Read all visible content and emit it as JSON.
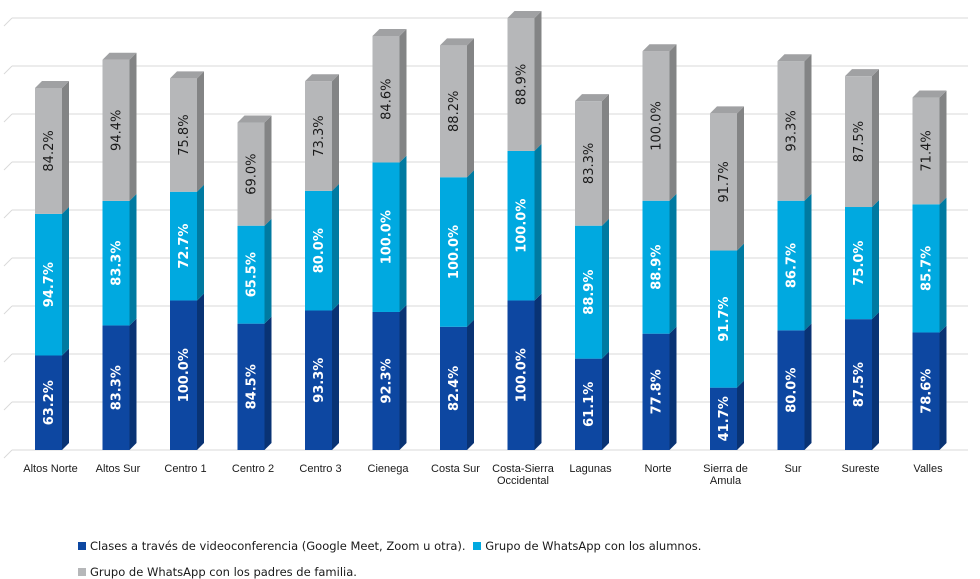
{
  "chart_data": {
    "type": "bar",
    "stacked": true,
    "value_mode": "stacked 3D bars, each segment labeled with a percentage",
    "categories": [
      "Altos Norte",
      "Altos Sur",
      "Centro 1",
      "Centro 2",
      "Centro 3",
      "Cienega",
      "Costa Sur",
      "Costa-Sierra Occidental",
      "Lagunas",
      "Norte",
      "Sierra de Amula",
      "Sur",
      "Sureste",
      "Valles"
    ],
    "category_lines": [
      [
        "Altos Norte"
      ],
      [
        "Altos Sur"
      ],
      [
        "Centro 1"
      ],
      [
        "Centro 2"
      ],
      [
        "Centro 3"
      ],
      [
        "Cienega"
      ],
      [
        "Costa Sur"
      ],
      [
        "Costa-Sierra",
        "Occidental"
      ],
      [
        "Lagunas"
      ],
      [
        "Norte"
      ],
      [
        "Sierra de",
        "Amula"
      ],
      [
        "Sur"
      ],
      [
        "Sureste"
      ],
      [
        "Valles"
      ]
    ],
    "series": [
      {
        "name": "Clases a través de videoconferencia (Google Meet, Zoom u otra).",
        "color": "#0d47a1",
        "label_color": "#ffffff",
        "values": [
          63.2,
          83.3,
          100.0,
          84.5,
          93.3,
          92.3,
          82.4,
          100.0,
          61.1,
          77.8,
          41.7,
          80.0,
          87.5,
          78.6
        ]
      },
      {
        "name": "Grupo de WhatsApp con los alumnos.",
        "color": "#00a9e0",
        "label_color": "#ffffff",
        "values": [
          94.7,
          83.3,
          72.7,
          65.5,
          80.0,
          100.0,
          100.0,
          100.0,
          88.9,
          88.9,
          91.7,
          86.7,
          75.0,
          85.7
        ]
      },
      {
        "name": "Grupo de WhatsApp con los padres de familia.",
        "color": "#b6b7b9",
        "label_color": "#1a1a1a",
        "values": [
          84.2,
          94.4,
          75.8,
          69.0,
          73.3,
          84.6,
          88.2,
          88.9,
          83.3,
          100.0,
          91.7,
          93.3,
          87.5,
          71.4
        ]
      }
    ],
    "legend_position": "bottom",
    "grid": true,
    "y_tick_labels_shown": false
  },
  "colors": {
    "dark_blue": "#0d47a1",
    "light_blue": "#00a9e0",
    "gray": "#b6b7b9",
    "grid": "#d9d9d9"
  }
}
